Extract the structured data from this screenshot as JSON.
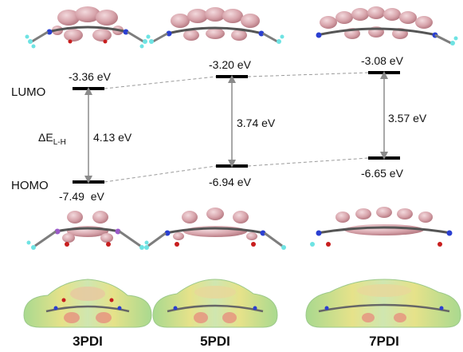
{
  "levels_axis": {
    "lumo_label": "LUMO",
    "homo_label": "HOMO",
    "gap_symbol_main": "ΔE",
    "gap_symbol_sub": "L-H"
  },
  "molecules": [
    {
      "name": "3PDI",
      "lumo_label": "-3.36 eV",
      "homo_label": "-7.49  eV",
      "gap_label": "4.13 eV",
      "lumo": -3.36,
      "homo": -7.49,
      "gap": 4.13
    },
    {
      "name": "5PDI",
      "lumo_label": "-3.20 eV",
      "homo_label": "-6.94 eV",
      "gap_label": "3.74 eV",
      "lumo": -3.2,
      "homo": -6.94,
      "gap": 3.74
    },
    {
      "name": "7PDI",
      "lumo_label": "-3.08 eV",
      "homo_label": "-6.65 eV",
      "gap_label": "3.57 eV",
      "lumo": -3.08,
      "homo": -6.65,
      "gap": 3.57
    }
  ],
  "colors": {
    "level_bar": "#000000",
    "arrow": "#8a8a8a",
    "dashed_link": "#9a9a9a",
    "orbital_lobe": "#c98a92",
    "esp_surface": "#bfe0a0",
    "esp_negative": "#e8847a",
    "atom_carbon": "#7d7d7d",
    "atom_nitrogen": "#2a3fd1",
    "atom_oxygen": "#c81e1e",
    "atom_fluorine": "#6ee3e3"
  }
}
